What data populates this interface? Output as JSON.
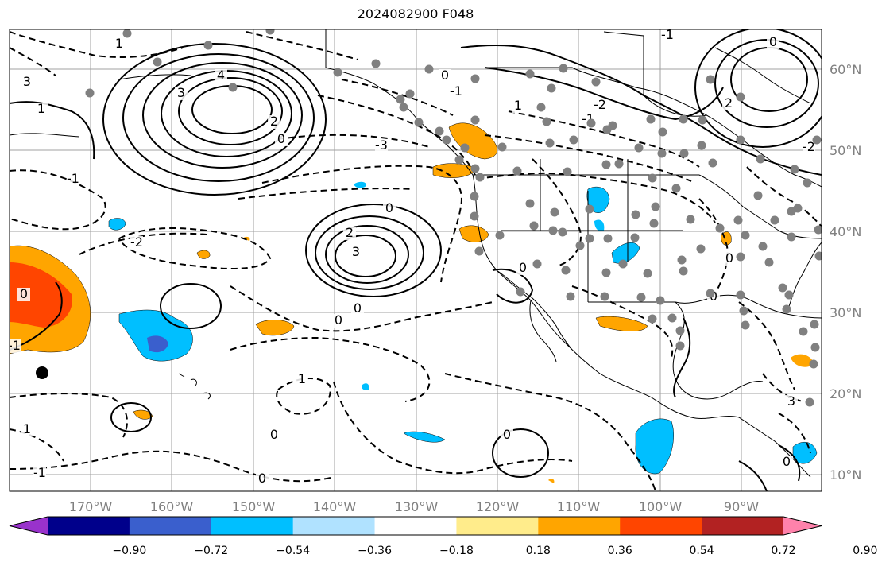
{
  "title": "2024082900 F048",
  "map": {
    "lon_ticks": [
      "170°W",
      "160°W",
      "150°W",
      "140°W",
      "130°W",
      "120°W",
      "110°W",
      "100°W",
      "90°W"
    ],
    "lat_ticks": [
      "60°N",
      "50°N",
      "40°N",
      "30°N",
      "20°N",
      "10°N"
    ],
    "contour_labels": [
      "1",
      "3",
      "4",
      "3",
      "2",
      "1",
      "0",
      "-1",
      "-3",
      "-1",
      "-2",
      "2",
      "3",
      "0",
      "0",
      "0",
      "1",
      "0",
      "0",
      "-1",
      "0",
      "0",
      "-1",
      "0",
      "-2",
      "1",
      "-1",
      "0",
      "-2",
      "2",
      "3",
      "0",
      "0",
      "0",
      "-1",
      "1",
      "0"
    ],
    "colors": {
      "strong_positive": "#ff4500",
      "positive": "#ffa500",
      "negative": "#00bfff",
      "strong_negative": "#3a5fcd",
      "station": "#808080"
    }
  },
  "colorbar": {
    "colors": [
      "#9932cc",
      "#00008b",
      "#3a5fcd",
      "#00bfff",
      "#b0e2ff",
      "#ffffff",
      "#ffec8b",
      "#ffa500",
      "#ff4500",
      "#b22222",
      "#ff82ab"
    ],
    "labels": [
      "−0.90",
      "−0.72",
      "−0.54",
      "−0.36",
      "−0.18",
      "0.18",
      "0.36",
      "0.54",
      "0.72",
      "0.90"
    ]
  }
}
